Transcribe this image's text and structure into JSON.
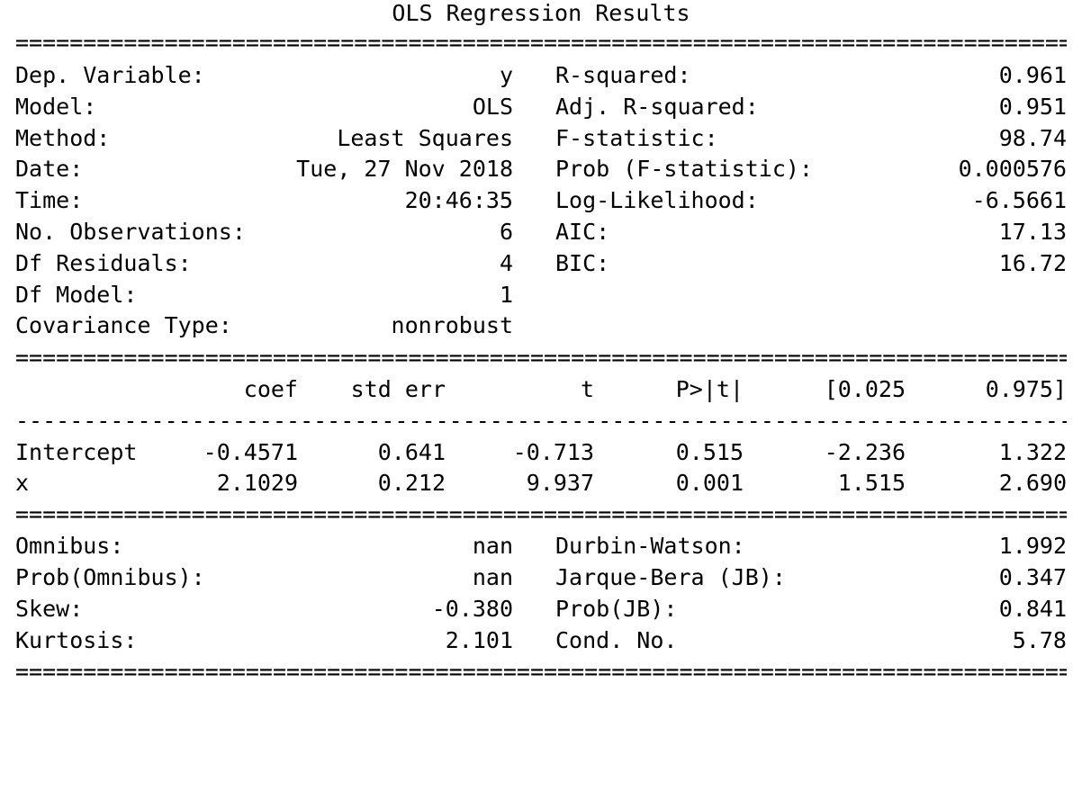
{
  "title": "OLS Regression Results",
  "rules": {
    "double": "================================================================================",
    "single": "--------------------------------------------------------------------------------"
  },
  "top_table": [
    {
      "left_label": "Dep. Variable:",
      "left_value": "y",
      "right_label": "R-squared:",
      "right_value": "0.961"
    },
    {
      "left_label": "Model:",
      "left_value": "OLS",
      "right_label": "Adj. R-squared:",
      "right_value": "0.951"
    },
    {
      "left_label": "Method:",
      "left_value": "Least Squares",
      "right_label": "F-statistic:",
      "right_value": "98.74"
    },
    {
      "left_label": "Date:",
      "left_value": "Tue, 27 Nov 2018",
      "right_label": "Prob (F-statistic):",
      "right_value": "0.000576"
    },
    {
      "left_label": "Time:",
      "left_value": "20:46:35",
      "right_label": "Log-Likelihood:",
      "right_value": "-6.5661"
    },
    {
      "left_label": "No. Observations:",
      "left_value": "6",
      "right_label": "AIC:",
      "right_value": "17.13"
    },
    {
      "left_label": "Df Residuals:",
      "left_value": "4",
      "right_label": "BIC:",
      "right_value": "16.72"
    },
    {
      "left_label": "Df Model:",
      "left_value": "1",
      "right_label": "",
      "right_value": ""
    },
    {
      "left_label": "Covariance Type:",
      "left_value": "nonrobust",
      "right_label": "",
      "right_value": ""
    }
  ],
  "coef_table": {
    "headers": [
      "coef",
      "std err",
      "t",
      "P>|t|",
      "[0.025",
      "0.975]"
    ],
    "rows": [
      {
        "name": "Intercept",
        "values": [
          "-0.4571",
          "0.641",
          "-0.713",
          "0.515",
          "-2.236",
          "1.322"
        ]
      },
      {
        "name": "x",
        "values": [
          "2.1029",
          "0.212",
          "9.937",
          "0.001",
          "1.515",
          "2.690"
        ]
      }
    ]
  },
  "diag_table": [
    {
      "left_label": "Omnibus:",
      "left_value": "nan",
      "right_label": "Durbin-Watson:",
      "right_value": "1.992"
    },
    {
      "left_label": "Prob(Omnibus):",
      "left_value": "nan",
      "right_label": "Jarque-Bera (JB):",
      "right_value": "0.347"
    },
    {
      "left_label": "Skew:",
      "left_value": "-0.380",
      "right_label": "Prob(JB):",
      "right_value": "0.841"
    },
    {
      "left_label": "Kurtosis:",
      "left_value": "2.101",
      "right_label": "Cond. No.",
      "right_value": "5.78"
    }
  ]
}
